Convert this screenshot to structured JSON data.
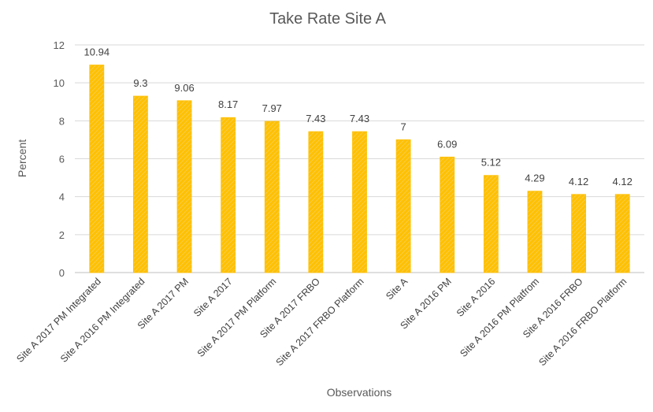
{
  "chart_data": {
    "type": "bar",
    "title": "Take Rate Site A",
    "xlabel": "Observations",
    "ylabel": "Percent",
    "ylim": [
      0,
      12
    ],
    "yticks": [
      0,
      2,
      4,
      6,
      8,
      10,
      12
    ],
    "grid": true,
    "bar_color": "#FFC000",
    "categories": [
      "Site A 2017 PM Integrated",
      "Site A 2016 PM Integrated",
      "Site A 2017 PM",
      "Site A 2017",
      "Site A 2017 PM Platform",
      "Site A 2017 FRBO",
      "Site A 2017 FRBO Platform",
      "Site A",
      "Site A 2016 PM",
      "Site A 2016",
      "Site A 2016 PM Platfrom",
      "Site A 2016 FRBO",
      "Site A 2016 FRBO Platform"
    ],
    "values": [
      10.94,
      9.3,
      9.06,
      8.17,
      7.97,
      7.43,
      7.43,
      7,
      6.09,
      5.12,
      4.29,
      4.12,
      4.12
    ],
    "data_labels": [
      "10.94",
      "9.3",
      "9.06",
      "8.17",
      "7.97",
      "7.43",
      "7.43",
      "7",
      "6.09",
      "5.12",
      "4.29",
      "4.12",
      "4.12"
    ]
  }
}
